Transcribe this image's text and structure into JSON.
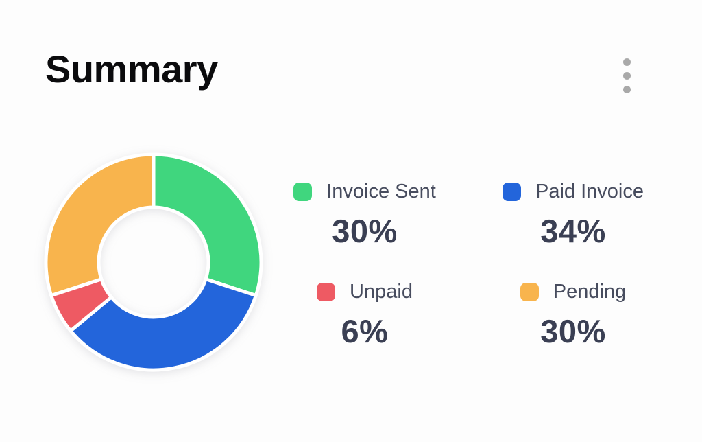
{
  "header": {
    "title": "Summary",
    "menu_icon": "kebab-vertical-icon"
  },
  "legend": {
    "items": [
      {
        "label": "Invoice Sent",
        "value": "30%",
        "color": "#40D67E"
      },
      {
        "label": "Paid Invoice",
        "value": "34%",
        "color": "#2365DB"
      },
      {
        "label": "Unpaid",
        "value": "6%",
        "color": "#EE5A63"
      },
      {
        "label": "Pending",
        "value": "30%",
        "color": "#F8B44D"
      }
    ]
  },
  "chart_data": {
    "type": "pie",
    "variant": "donut",
    "title": "Summary",
    "labels": [
      "Invoice Sent",
      "Paid Invoice",
      "Unpaid",
      "Pending"
    ],
    "values": [
      30,
      34,
      6,
      30
    ],
    "unit": "%",
    "colors": [
      "#40D67E",
      "#2365DB",
      "#EE5A63",
      "#F8B44D"
    ],
    "start_angle_deg": 0,
    "direction": "clockwise",
    "inner_radius_ratio": 0.51,
    "segment_gap_stroke": "#FFFFFF",
    "legend_position": "right"
  },
  "colors": {
    "background": "#FDFDFD",
    "title_text": "#0B0B0D",
    "legend_label": "#474C5E",
    "legend_value": "#3A3F53",
    "menu_dots": "#A9A9A9"
  }
}
